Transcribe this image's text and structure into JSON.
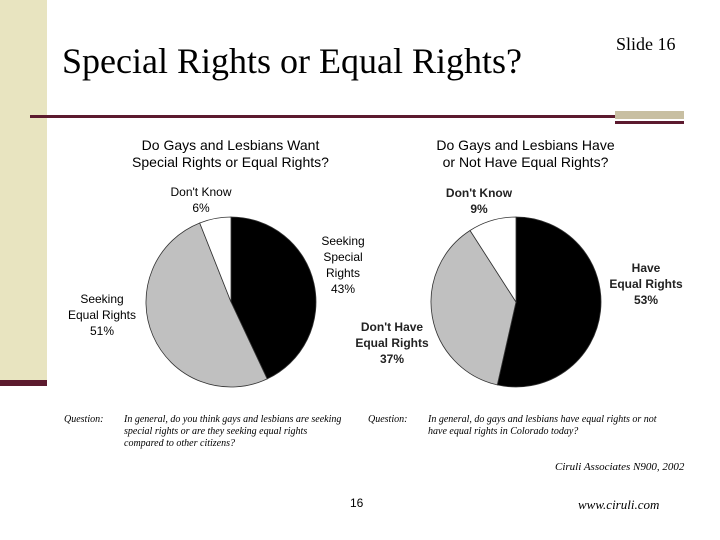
{
  "slide": {
    "title": "Special Rights or Equal Rights?",
    "slide_label": "Slide 16",
    "page_number": "16",
    "source": "Ciruli Associates N900, 2002",
    "url": "www.ciruli.com"
  },
  "colors": {
    "sidebar": "#e8e4c0",
    "accent": "#5c1a2e",
    "black_slice": "#000000",
    "gray_slice": "#c0c0c0",
    "white_slice": "#ffffff"
  },
  "chart_data": [
    {
      "type": "pie",
      "title_lines": [
        "Do Gays and Lesbians Want",
        "Special Rights or Equal Rights?"
      ],
      "slices": [
        {
          "label_lines": [
            "Seeking",
            "Special",
            "Rights",
            "43%"
          ],
          "value": 43,
          "color": "#000000"
        },
        {
          "label_lines": [
            "Seeking",
            "Equal Rights",
            "51%"
          ],
          "value": 51,
          "color": "#c0c0c0"
        },
        {
          "label_lines": [
            "Don't Know",
            "6%"
          ],
          "value": 6,
          "color": "#ffffff"
        }
      ],
      "question_label": "Question:",
      "question_text": "In general, do you think gays and lesbians are seeking special rights or are they seeking equal rights compared to other citizens?"
    },
    {
      "type": "pie",
      "title_lines": [
        "Do Gays and Lesbians Have",
        "or Not Have Equal Rights?"
      ],
      "slices": [
        {
          "label_lines": [
            "Have",
            "Equal Rights",
            "53%"
          ],
          "value": 53,
          "color": "#000000"
        },
        {
          "label_lines": [
            "Don't Have",
            "Equal Rights",
            "37%"
          ],
          "value": 37,
          "color": "#c0c0c0"
        },
        {
          "label_lines": [
            "Don't Know",
            "9%"
          ],
          "value": 9,
          "color": "#ffffff"
        }
      ],
      "question_label": "Question:",
      "question_text": "In general, do gays and lesbians have equal rights or not have equal rights in Colorado today?"
    }
  ]
}
